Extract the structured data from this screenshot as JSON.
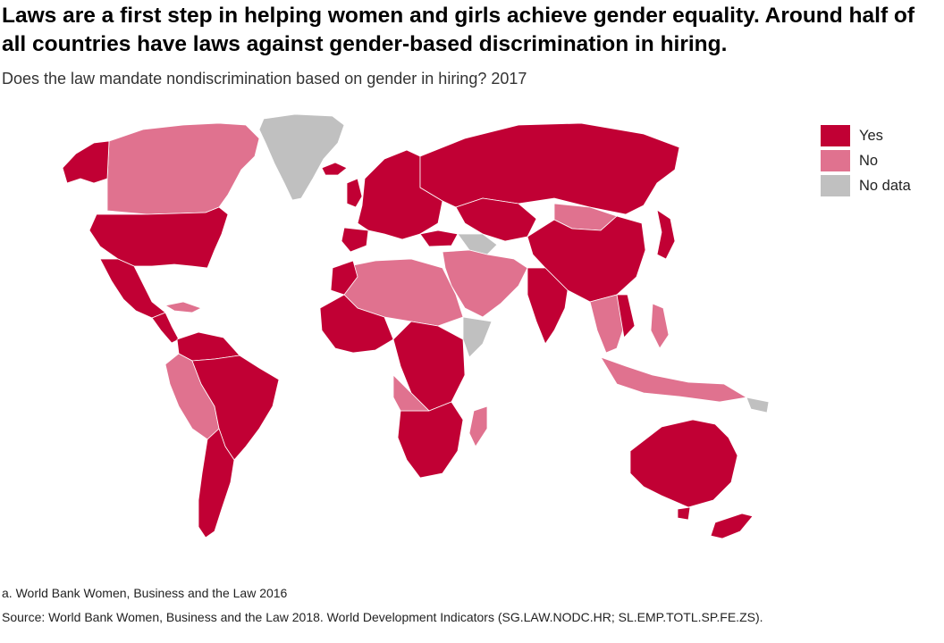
{
  "header": {
    "title": "Laws are a first step in helping women and girls achieve gender equality. Around half of all countries have laws against gender-based discrimination in hiring.",
    "subtitle": "Does the law mandate nondiscrimination based on gender in hiring? 2017"
  },
  "legend": {
    "items": [
      {
        "label": "Yes",
        "color": "#c10034"
      },
      {
        "label": "No",
        "color": "#e0728f"
      },
      {
        "label": "No data",
        "color": "#c0c0c0"
      }
    ]
  },
  "colors": {
    "yes": "#c10034",
    "no": "#e0728f",
    "nodata": "#c0c0c0",
    "border": "#ffffff"
  },
  "footer": {
    "footnote": "a. World Bank Women, Business and the Law 2016",
    "source": "Source: World Bank Women, Business and the Law 2018. World Development Indicators (SG.LAW.NODC.HR; SL.EMP.TOTL.SP.FE.ZS)."
  }
}
